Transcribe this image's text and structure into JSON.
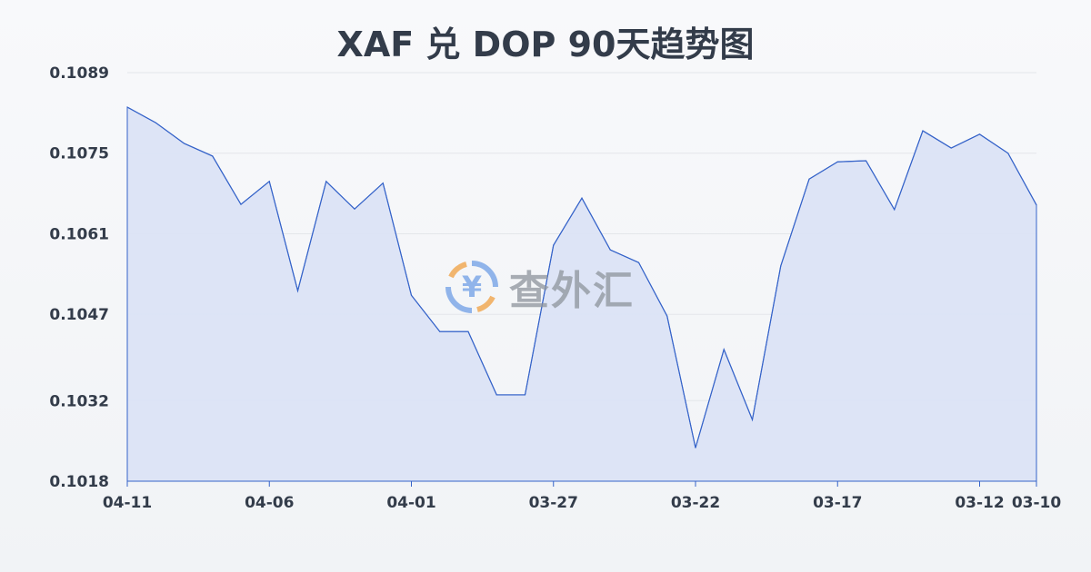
{
  "chart_data": {
    "type": "area",
    "title": "XAF 兑 DOP 90天趋势图",
    "xlabel": "",
    "ylabel": "",
    "x": [
      "04-11",
      "04-10",
      "04-09",
      "04-08",
      "04-07",
      "04-06",
      "04-05",
      "04-04",
      "04-03",
      "04-02",
      "04-01",
      "03-31",
      "03-30",
      "03-29",
      "03-28",
      "03-27",
      "03-26",
      "03-25",
      "03-24",
      "03-23",
      "03-22",
      "03-21",
      "03-20",
      "03-19",
      "03-18",
      "03-17",
      "03-16",
      "03-15",
      "03-14",
      "03-13",
      "03-12",
      "03-11",
      "03-10"
    ],
    "values": [
      0.1083,
      0.10803,
      0.10767,
      0.10745,
      0.10661,
      0.10701,
      0.10511,
      0.10701,
      0.10653,
      0.10698,
      0.10503,
      0.1044,
      0.1044,
      0.1033,
      0.1033,
      0.1059,
      0.10672,
      0.10582,
      0.1056,
      0.10467,
      0.10238,
      0.10409,
      0.10287,
      0.10554,
      0.10705,
      0.10735,
      0.10737,
      0.10652,
      0.10789,
      0.10759,
      0.10783,
      0.1075,
      0.1066
    ],
    "ylim": [
      0.1018,
      0.1089
    ],
    "yticks": [
      "0.1089",
      "0.1075",
      "0.1061",
      "0.1047",
      "0.1032",
      "0.1018"
    ],
    "xticks": [
      "04-11",
      "04-06",
      "04-01",
      "03-27",
      "03-22",
      "03-17",
      "03-12",
      "03-10"
    ],
    "grid": true,
    "colors": {
      "line": "#3563c9",
      "fill": "#dbe3f5",
      "grid": "#e3e6ea"
    }
  },
  "watermark": {
    "text": "查外汇",
    "icon": "yen-exchange-icon",
    "color": "#5b8ee0"
  }
}
